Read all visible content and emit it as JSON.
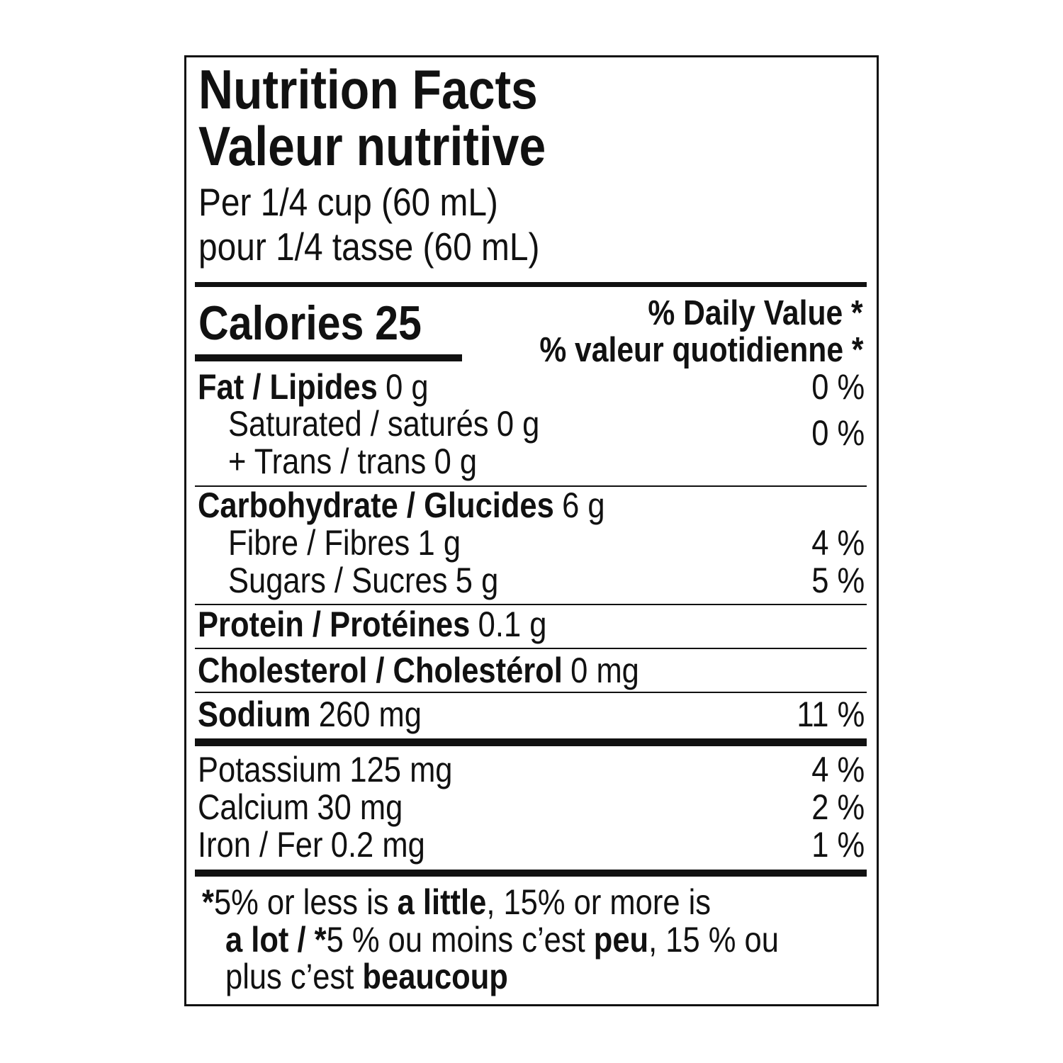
{
  "header": {
    "title_en": "Nutrition Facts",
    "title_fr": "Valeur nutritive",
    "serving_en": "Per 1/4 cup (60 mL)",
    "serving_fr": "pour 1/4 tasse (60 mL)"
  },
  "calories": {
    "label": "Calories",
    "value": 25
  },
  "daily_value_header": [
    "% Daily Value *",
    "% valeur quotidienne *"
  ],
  "nutrients": [
    {
      "name": "Fat / Lipides",
      "amount": "0 g",
      "percent": "0 %",
      "bold": true,
      "indent": false
    },
    {
      "name": "Saturated / saturés",
      "amount": "0 g",
      "bold": false,
      "indent": true
    },
    {
      "name": "+ Trans / trans",
      "amount": "0 g",
      "bold": false,
      "indent": true
    },
    {
      "name": "Carbohydrate / Glucides",
      "amount": "6 g",
      "bold": true,
      "indent": false
    },
    {
      "name": "Fibre / Fibres",
      "amount": "1 g",
      "percent": "4 %",
      "bold": false,
      "indent": true
    },
    {
      "name": "Sugars / Sucres",
      "amount": "5 g",
      "percent": "5 %",
      "bold": false,
      "indent": true
    },
    {
      "name": "Protein / Protéines",
      "amount": "0.1 g",
      "bold": true,
      "indent": false
    },
    {
      "name": "Cholesterol / Cholestérol",
      "amount": "0 mg",
      "bold": true,
      "indent": false
    },
    {
      "name": "Sodium",
      "amount": "260 mg",
      "percent": "11 %",
      "bold": true,
      "indent": false
    },
    {
      "name": "Potassium",
      "amount": "125 mg",
      "percent": "4 %",
      "bold": false,
      "indent": false
    },
    {
      "name": "Calcium",
      "amount": "30 mg",
      "percent": "2 %",
      "bold": false,
      "indent": false
    },
    {
      "name": "Iron / Fer",
      "amount": "0.2 mg",
      "percent": "1 %",
      "bold": false,
      "indent": false
    }
  ],
  "saturated_trans_percent": "0 %",
  "footnote": [
    [
      {
        "text": "*",
        "bold": true
      },
      {
        "text": "5% or less is ",
        "bold": false
      },
      {
        "text": "a little",
        "bold": true
      },
      {
        "text": ", 15% or more is",
        "bold": false
      }
    ],
    [
      {
        "text": "a lot / *",
        "bold": true
      },
      {
        "text": "5 % ou moins c’est ",
        "bold": false
      },
      {
        "text": "peu",
        "bold": true
      },
      {
        "text": ", 15 % ou",
        "bold": false
      }
    ],
    [
      {
        "text": "plus c’est ",
        "bold": false
      },
      {
        "text": "beaucoup",
        "bold": true
      }
    ]
  ]
}
